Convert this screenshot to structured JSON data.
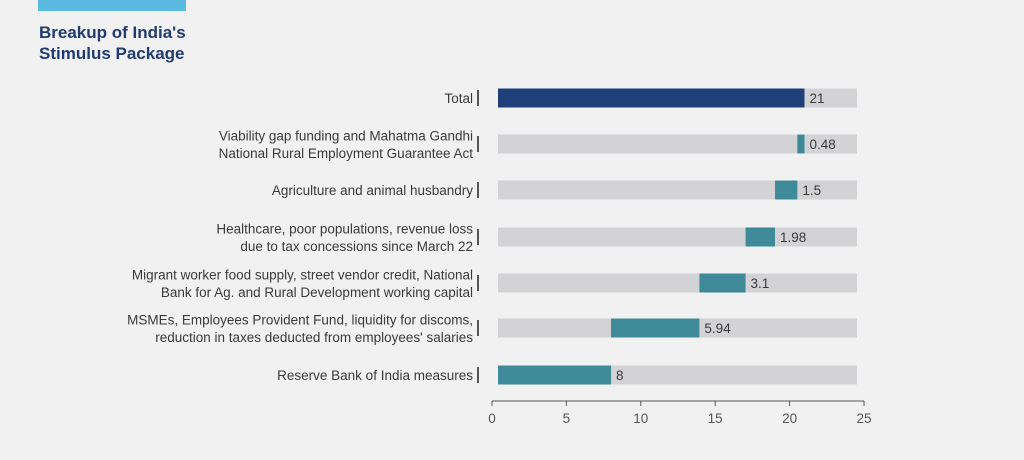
{
  "header": {
    "title_line1": "Breakup of India's",
    "title_line2": "Stimulus Package"
  },
  "colors": {
    "total_bar": "#1f3f7a",
    "segment_bar": "#3e8a98",
    "track": "#d3d3d5",
    "accent": "#5bb8e0",
    "title": "#1f3b70"
  },
  "chart_data": {
    "type": "bar",
    "orientation": "horizontal",
    "stacked_waterfall": true,
    "xlim": [
      0,
      25
    ],
    "xticks": [
      0,
      5,
      10,
      15,
      20,
      25
    ],
    "grid": false,
    "legend": "none",
    "categories": [
      [
        "Total"
      ],
      [
        "Viability gap funding and Mahatma Gandhi",
        "National Rural Employment Guarantee Act"
      ],
      [
        "Agriculture and animal husbandry"
      ],
      [
        "Healthcare, poor populations, revenue loss",
        "due to tax concessions since March 22"
      ],
      [
        "Migrant worker food supply, street vendor credit, National",
        "Bank for Ag. and Rural Development working capital"
      ],
      [
        "MSMEs, Employees Provident Fund, liquidity for discoms,",
        "reduction in taxes deducted from employees' salaries"
      ],
      [
        "Reserve Bank of India measures"
      ]
    ],
    "values": [
      21,
      0.48,
      1.5,
      1.98,
      3.1,
      5.94,
      8
    ],
    "value_labels": [
      "21",
      "0.48",
      "1.5",
      "1.98",
      "3.1",
      "5.94",
      "8"
    ],
    "is_total": [
      true,
      false,
      false,
      false,
      false,
      false,
      false
    ]
  }
}
